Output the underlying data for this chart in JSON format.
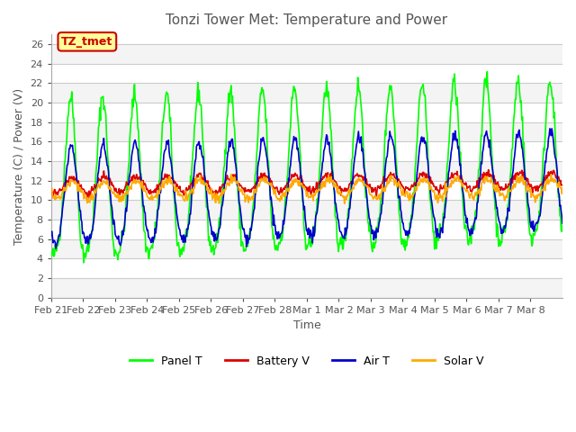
{
  "title": "Tonzi Tower Met: Temperature and Power",
  "xlabel": "Time",
  "ylabel": "Temperature (C) / Power (V)",
  "ylim": [
    0,
    27
  ],
  "yticks": [
    0,
    2,
    4,
    6,
    8,
    10,
    12,
    14,
    16,
    18,
    20,
    22,
    24,
    26
  ],
  "xtick_labels": [
    "Feb 21",
    "Feb 22",
    "Feb 23",
    "Feb 24",
    "Feb 25",
    "Feb 26",
    "Feb 27",
    "Feb 28",
    "Mar 1",
    "Mar 2",
    "Mar 3",
    "Mar 4",
    "Mar 5",
    "Mar 6",
    "Mar 7",
    "Mar 8"
  ],
  "legend_labels": [
    "Panel T",
    "Battery V",
    "Air T",
    "Solar V"
  ],
  "legend_colors": [
    "#00ff00",
    "#dd0000",
    "#0000cc",
    "#ffaa00"
  ],
  "annotation_text": "TZ_tmet",
  "annotation_color": "#cc0000",
  "annotation_bg": "#ffff99",
  "bg_color": "#ffffff",
  "grid_color": "#cccccc",
  "title_color": "#555555"
}
